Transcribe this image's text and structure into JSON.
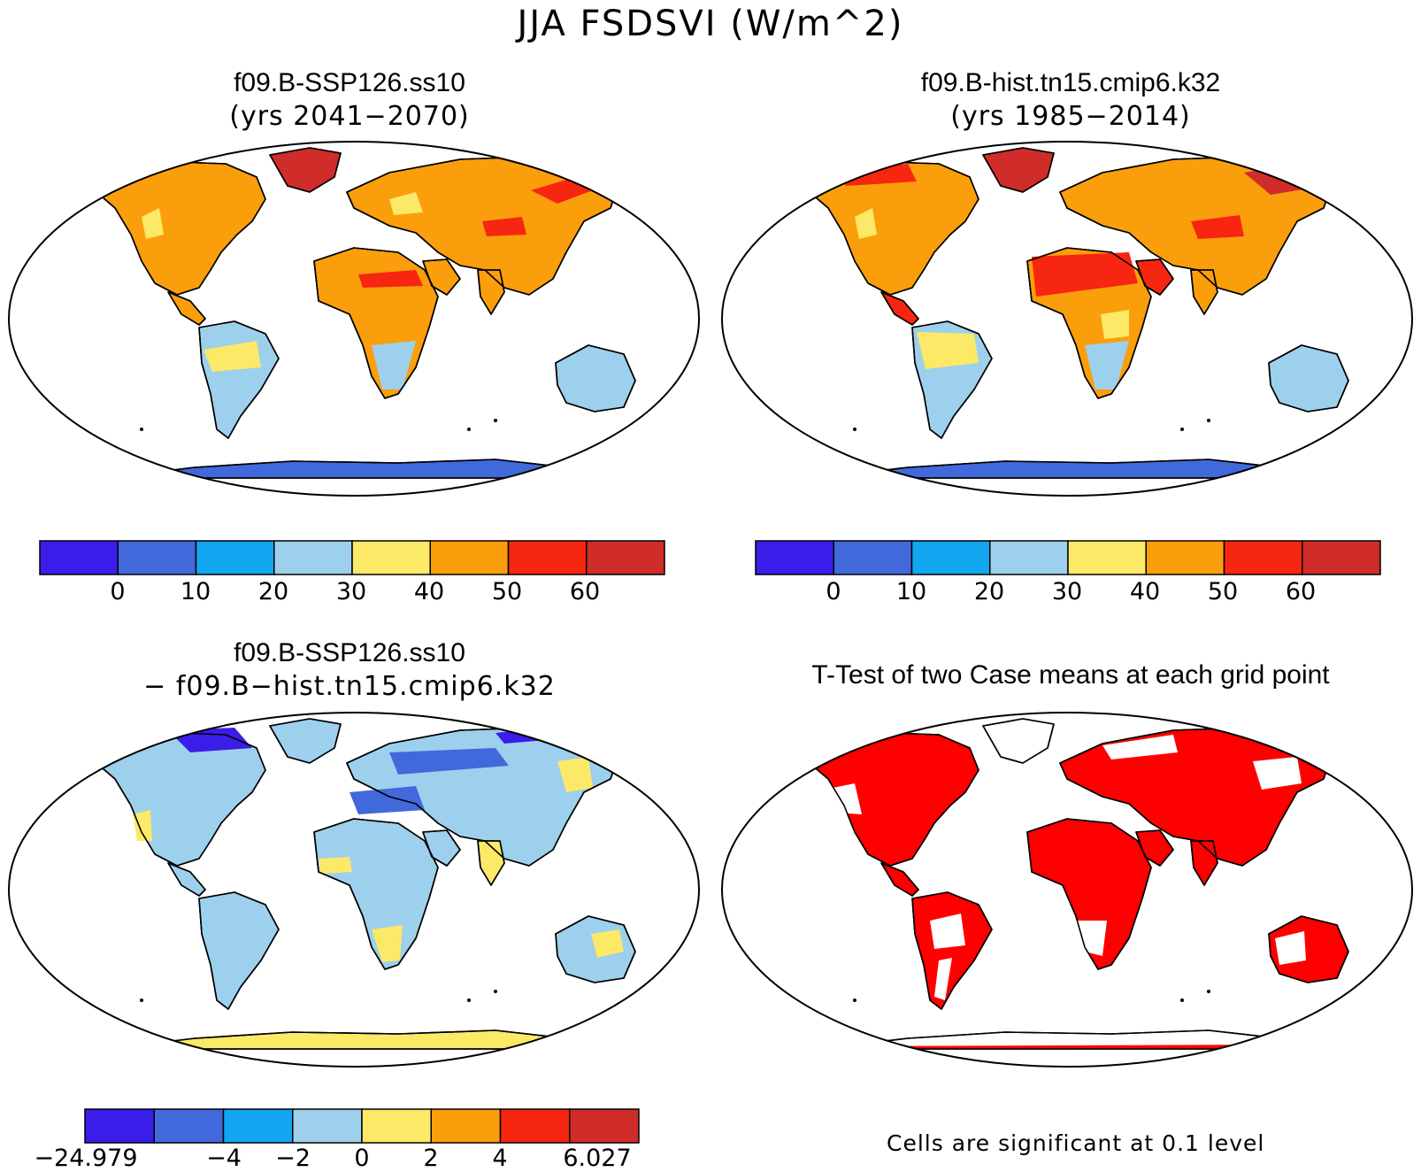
{
  "title": "JJA FSDSVI (W/m^2)",
  "panels": [
    {
      "id": "ssp126",
      "title": "f09.B-SSP126.ss10",
      "subtitle": "(yrs 2041−2070)",
      "colorbar": {
        "colors": [
          "#3a1de8",
          "#4169dc",
          "#12a5f0",
          "#9dd0ec",
          "#fbe967",
          "#fb9e0c",
          "#f72610",
          "#cf2c2a"
        ],
        "ticks": [
          "0",
          "10",
          "20",
          "30",
          "40",
          "50",
          "60"
        ]
      }
    },
    {
      "id": "hist",
      "title": "f09.B-hist.tn15.cmip6.k32",
      "subtitle": "(yrs 1985−2014)",
      "colorbar": {
        "colors": [
          "#3a1de8",
          "#4169dc",
          "#12a5f0",
          "#9dd0ec",
          "#fbe967",
          "#fb9e0c",
          "#f72610",
          "#cf2c2a"
        ],
        "ticks": [
          "0",
          "10",
          "20",
          "30",
          "40",
          "50",
          "60"
        ]
      }
    },
    {
      "id": "diff",
      "title": "f09.B-SSP126.ss10",
      "subtitle": "− f09.B−hist.tn15.cmip6.k32",
      "colorbar": {
        "colors": [
          "#3a1de8",
          "#4169dc",
          "#12a5f0",
          "#9dd0ec",
          "#fbe967",
          "#fb9e0c",
          "#f72610",
          "#cf2c2a"
        ],
        "ticks": [
          "−24.979",
          "−4",
          "−2",
          "0",
          "2",
          "4",
          "6.027"
        ]
      }
    },
    {
      "id": "ttest",
      "title": "T-Test of two Case means at each grid point",
      "footnote": "Cells are significant at 0.1 level",
      "significant_color": "#ff0000"
    }
  ]
}
